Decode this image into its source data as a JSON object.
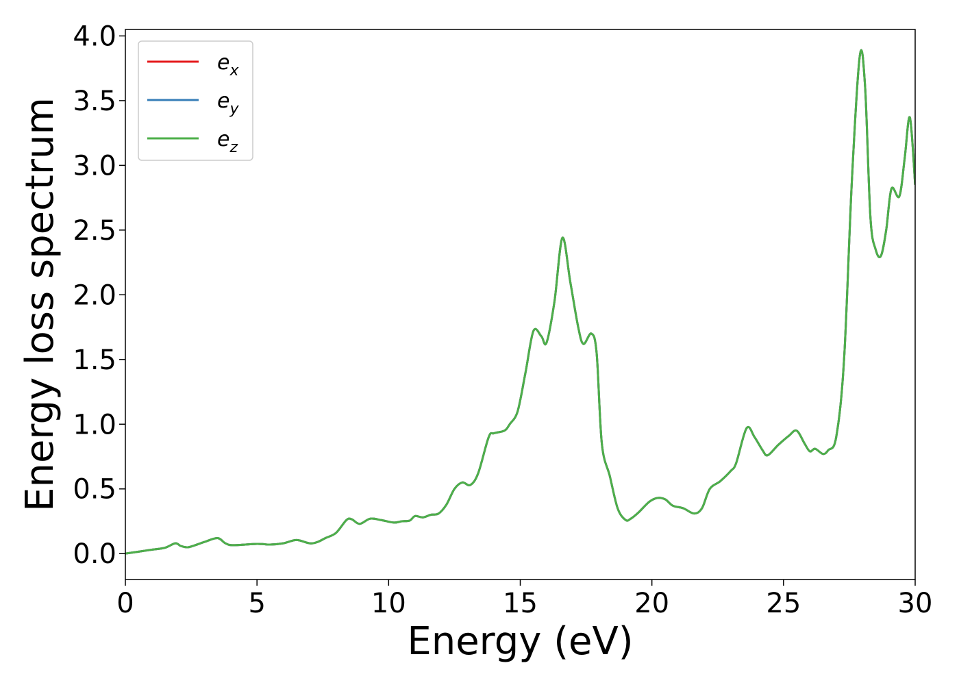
{
  "chart_data": {
    "type": "line",
    "xlabel": "Energy (eV)",
    "ylabel": "Energy loss spectrum",
    "xlim": [
      0,
      30
    ],
    "ylim": [
      -0.2,
      4.05
    ],
    "xticks": [
      0,
      5,
      10,
      15,
      20,
      25,
      30
    ],
    "xtick_labels": [
      "0",
      "5",
      "10",
      "15",
      "20",
      "25",
      "30"
    ],
    "yticks": [
      0.0,
      0.5,
      1.0,
      1.5,
      2.0,
      2.5,
      3.0,
      3.5,
      4.0
    ],
    "ytick_labels": [
      "0.0",
      "0.5",
      "1.0",
      "1.5",
      "2.0",
      "2.5",
      "3.0",
      "3.5",
      "4.0"
    ],
    "grid": false,
    "legend_position": "top-left",
    "x": [
      0,
      0.5,
      1.0,
      1.5,
      1.9,
      2.1,
      2.4,
      3.0,
      3.5,
      3.8,
      4.1,
      5.0,
      5.5,
      6.0,
      6.5,
      7.0,
      7.3,
      7.6,
      8.0,
      8.4,
      8.6,
      8.9,
      9.3,
      9.7,
      10.2,
      10.5,
      10.8,
      11.0,
      11.3,
      11.6,
      11.9,
      12.2,
      12.5,
      12.8,
      13.1,
      13.4,
      13.8,
      14.0,
      14.4,
      14.6,
      14.9,
      15.2,
      15.5,
      15.8,
      16.0,
      16.3,
      16.6,
      16.9,
      17.2,
      17.4,
      17.7,
      17.9,
      18.1,
      18.4,
      18.7,
      19.0,
      19.2,
      19.5,
      19.9,
      20.2,
      20.5,
      20.8,
      21.2,
      21.6,
      21.9,
      22.2,
      22.6,
      23.0,
      23.2,
      23.6,
      23.9,
      24.2,
      24.4,
      24.8,
      25.2,
      25.5,
      25.8,
      26.0,
      26.2,
      26.5,
      26.7,
      27.0,
      27.3,
      27.6,
      27.9,
      28.1,
      28.3,
      28.5,
      28.7,
      28.9,
      29.1,
      29.4,
      29.6,
      29.8,
      30.0
    ],
    "series": [
      {
        "name": "e_x",
        "color": "#e41a1c",
        "values": [
          0.0,
          0.015,
          0.03,
          0.045,
          0.08,
          0.06,
          0.05,
          0.09,
          0.12,
          0.08,
          0.065,
          0.075,
          0.07,
          0.08,
          0.105,
          0.08,
          0.09,
          0.12,
          0.16,
          0.26,
          0.265,
          0.23,
          0.27,
          0.26,
          0.24,
          0.25,
          0.255,
          0.29,
          0.28,
          0.3,
          0.31,
          0.38,
          0.5,
          0.55,
          0.53,
          0.62,
          0.9,
          0.93,
          0.95,
          1.0,
          1.1,
          1.4,
          1.72,
          1.68,
          1.63,
          1.95,
          2.44,
          2.1,
          1.75,
          1.62,
          1.7,
          1.55,
          0.85,
          0.6,
          0.35,
          0.26,
          0.27,
          0.32,
          0.4,
          0.43,
          0.42,
          0.37,
          0.35,
          0.31,
          0.35,
          0.5,
          0.56,
          0.64,
          0.7,
          0.97,
          0.9,
          0.8,
          0.76,
          0.84,
          0.91,
          0.95,
          0.85,
          0.79,
          0.81,
          0.77,
          0.8,
          0.9,
          1.5,
          2.9,
          3.85,
          3.6,
          2.6,
          2.35,
          2.3,
          2.5,
          2.82,
          2.76,
          3.05,
          3.37,
          2.85
        ]
      },
      {
        "name": "e_y",
        "color": "#377eb8",
        "values": [
          0.0,
          0.015,
          0.03,
          0.045,
          0.08,
          0.06,
          0.05,
          0.09,
          0.12,
          0.08,
          0.065,
          0.075,
          0.07,
          0.08,
          0.105,
          0.08,
          0.09,
          0.12,
          0.16,
          0.26,
          0.265,
          0.23,
          0.27,
          0.26,
          0.24,
          0.25,
          0.255,
          0.29,
          0.28,
          0.3,
          0.31,
          0.38,
          0.5,
          0.55,
          0.53,
          0.62,
          0.9,
          0.93,
          0.95,
          1.0,
          1.1,
          1.4,
          1.72,
          1.68,
          1.63,
          1.95,
          2.44,
          2.1,
          1.75,
          1.62,
          1.7,
          1.55,
          0.85,
          0.6,
          0.35,
          0.26,
          0.27,
          0.32,
          0.4,
          0.43,
          0.42,
          0.37,
          0.35,
          0.31,
          0.35,
          0.5,
          0.56,
          0.64,
          0.7,
          0.97,
          0.9,
          0.8,
          0.76,
          0.84,
          0.91,
          0.95,
          0.85,
          0.79,
          0.81,
          0.77,
          0.8,
          0.9,
          1.5,
          2.9,
          3.85,
          3.6,
          2.6,
          2.35,
          2.3,
          2.5,
          2.82,
          2.76,
          3.05,
          3.37,
          2.85
        ]
      },
      {
        "name": "e_z",
        "color": "#4daf4a",
        "values": [
          0.0,
          0.015,
          0.03,
          0.045,
          0.08,
          0.06,
          0.05,
          0.09,
          0.12,
          0.08,
          0.065,
          0.075,
          0.07,
          0.08,
          0.105,
          0.08,
          0.09,
          0.12,
          0.16,
          0.26,
          0.265,
          0.23,
          0.27,
          0.26,
          0.24,
          0.25,
          0.255,
          0.29,
          0.28,
          0.3,
          0.31,
          0.38,
          0.5,
          0.55,
          0.53,
          0.62,
          0.9,
          0.93,
          0.95,
          1.0,
          1.1,
          1.4,
          1.72,
          1.68,
          1.63,
          1.95,
          2.44,
          2.1,
          1.75,
          1.62,
          1.7,
          1.55,
          0.85,
          0.6,
          0.35,
          0.26,
          0.27,
          0.32,
          0.4,
          0.43,
          0.42,
          0.37,
          0.35,
          0.31,
          0.35,
          0.5,
          0.56,
          0.64,
          0.7,
          0.97,
          0.9,
          0.8,
          0.76,
          0.84,
          0.91,
          0.95,
          0.85,
          0.79,
          0.81,
          0.77,
          0.8,
          0.9,
          1.5,
          2.9,
          3.85,
          3.6,
          2.6,
          2.35,
          2.3,
          2.5,
          2.82,
          2.76,
          3.05,
          3.37,
          2.85
        ]
      }
    ],
    "legend": [
      {
        "base": "e",
        "sub": "x",
        "color": "#e41a1c"
      },
      {
        "base": "e",
        "sub": "y",
        "color": "#377eb8"
      },
      {
        "base": "e",
        "sub": "z",
        "color": "#4daf4a"
      }
    ]
  }
}
